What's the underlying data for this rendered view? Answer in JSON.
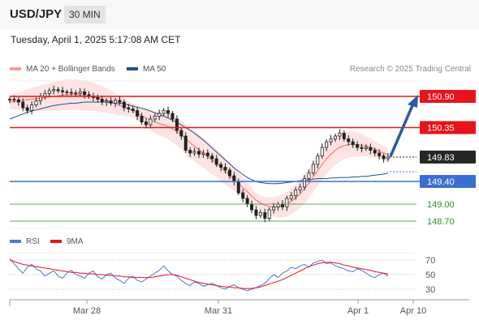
{
  "header": {
    "pair": "USD/JPY",
    "timeframe": "30 MIN"
  },
  "date": "Tuesday, April 1, 2025 5:17:08 AM CET",
  "legend": {
    "ma20": "MA 20 + Bollinger Bands",
    "ma50": "MA 50",
    "credit": "Research © 2025 Trading Central"
  },
  "colors": {
    "ma20": "#f26b6b",
    "ma50": "#1f4e8c",
    "band": "#fde3e3",
    "resistance": "#e8141b",
    "support": "#3b6fd4",
    "target": "#2e8b2e",
    "arrow": "#2a5aa0",
    "rsi": "#4a78d6",
    "rsi_ma": "#e8141b"
  },
  "chart_data": [
    {
      "type": "candlestick",
      "ylim": [
        148.5,
        151.1
      ],
      "x_ticks": [
        "Mar 28",
        "Mar 31",
        "Apr 1",
        "Apr 10"
      ],
      "levels": [
        {
          "label": "150.90",
          "value": 150.9,
          "kind": "resistance"
        },
        {
          "label": "150.35",
          "value": 150.35,
          "kind": "resistance"
        },
        {
          "label": "149.83",
          "value": 149.83,
          "kind": "last"
        },
        {
          "label": "149.40",
          "value": 149.4,
          "kind": "support"
        },
        {
          "label": "149.00",
          "value": 149.0,
          "kind": "target"
        },
        {
          "label": "148.70",
          "value": 148.7,
          "kind": "target"
        }
      ],
      "close": [
        150.85,
        150.84,
        150.8,
        150.7,
        150.65,
        150.75,
        150.82,
        150.9,
        150.95,
        151.0,
        151.02,
        151.0,
        150.98,
        150.97,
        150.96,
        150.95,
        150.98,
        150.93,
        150.9,
        150.88,
        150.85,
        150.8,
        150.82,
        150.78,
        150.83,
        150.8,
        150.7,
        150.68,
        150.65,
        150.55,
        150.45,
        150.4,
        150.5,
        150.55,
        150.6,
        150.65,
        150.6,
        150.5,
        150.3,
        150.2,
        149.95,
        149.9,
        149.93,
        149.88,
        149.9,
        149.85,
        149.8,
        149.7,
        149.65,
        149.6,
        149.5,
        149.4,
        149.2,
        149.1,
        149.0,
        148.9,
        148.8,
        148.85,
        148.75,
        148.9,
        148.95,
        149.0,
        148.95,
        149.1,
        149.15,
        149.25,
        149.3,
        149.45,
        149.55,
        149.7,
        149.85,
        150.0,
        150.1,
        150.15,
        150.2,
        150.25,
        150.15,
        150.1,
        150.05,
        150.0,
        149.98,
        150.0,
        149.95,
        149.9,
        149.85,
        149.8,
        149.83
      ],
      "ma20": [
        150.8,
        150.81,
        150.82,
        150.83,
        150.84,
        150.85,
        150.86,
        150.87,
        150.88,
        150.89,
        150.9,
        150.91,
        150.92,
        150.93,
        150.93,
        150.93,
        150.92,
        150.91,
        150.9,
        150.89,
        150.87,
        150.85,
        150.83,
        150.8,
        150.77,
        150.74,
        150.71,
        150.68,
        150.65,
        150.61,
        150.56,
        150.52,
        150.48,
        150.45,
        150.42,
        150.4,
        150.37,
        150.33,
        150.28,
        150.22,
        150.15,
        150.08,
        150.02,
        149.96,
        149.9,
        149.84,
        149.78,
        149.72,
        149.65,
        149.58,
        149.51,
        149.44,
        149.37,
        149.29,
        149.22,
        149.14,
        149.07,
        149.02,
        148.98,
        148.96,
        148.95,
        148.95,
        148.97,
        149.0,
        149.05,
        149.11,
        149.18,
        149.27,
        149.37,
        149.48,
        149.59,
        149.7,
        149.8,
        149.88,
        149.95,
        150.0,
        150.03,
        150.05,
        150.06,
        150.05,
        150.04,
        150.02,
        150.0,
        149.97,
        149.93,
        149.9,
        149.87
      ],
      "ma50": [
        150.5,
        150.53,
        150.56,
        150.59,
        150.62,
        150.64,
        150.66,
        150.68,
        150.7,
        150.72,
        150.74,
        150.75,
        150.76,
        150.77,
        150.78,
        150.78,
        150.79,
        150.8,
        150.8,
        150.8,
        150.8,
        150.8,
        150.8,
        150.79,
        150.79,
        150.78,
        150.77,
        150.75,
        150.73,
        150.71,
        150.69,
        150.67,
        150.64,
        150.61,
        150.58,
        150.55,
        150.52,
        150.48,
        150.44,
        150.4,
        150.35,
        150.3,
        150.25,
        150.19,
        150.13,
        150.06,
        149.99,
        149.92,
        149.85,
        149.78,
        149.71,
        149.64,
        149.58,
        149.52,
        149.47,
        149.43,
        149.4,
        149.38,
        149.37,
        149.36,
        149.36,
        149.36,
        149.37,
        149.38,
        149.39,
        149.4,
        149.41,
        149.42,
        149.43,
        149.44,
        149.45,
        149.45,
        149.45,
        149.46,
        149.46,
        149.47,
        149.47,
        149.47,
        149.48,
        149.48,
        149.49,
        149.49,
        149.5,
        149.51,
        149.52,
        149.53,
        149.55
      ]
    },
    {
      "type": "line",
      "name": "RSI",
      "y_ticks": [
        70,
        50,
        30
      ],
      "ylim": [
        25,
        75
      ],
      "rsi": [
        72,
        65,
        58,
        52,
        60,
        64,
        58,
        55,
        48,
        52,
        55,
        48,
        45,
        52,
        56,
        50,
        48,
        45,
        52,
        55,
        47,
        44,
        50,
        52,
        45,
        42,
        38,
        45,
        48,
        42,
        40,
        44,
        48,
        52,
        56,
        62,
        55,
        50,
        48,
        42,
        38,
        35,
        40,
        38,
        34,
        36,
        38,
        35,
        32,
        30,
        34,
        36,
        32,
        30,
        28,
        30,
        32,
        35,
        38,
        45,
        50,
        46,
        52,
        55,
        60,
        58,
        62,
        64,
        60,
        66,
        68,
        70,
        65,
        66,
        62,
        60,
        58,
        55,
        54,
        58,
        56,
        52,
        48,
        46,
        50,
        52,
        48
      ],
      "rsi_ma": [
        70,
        68,
        66,
        64,
        63,
        62,
        61,
        60,
        59,
        58,
        57,
        56,
        55,
        54,
        53,
        53,
        52,
        52,
        51,
        51,
        50,
        50,
        49,
        49,
        48,
        48,
        47,
        47,
        46,
        46,
        46,
        46,
        46,
        47,
        48,
        49,
        50,
        50,
        49,
        47,
        45,
        43,
        41,
        39,
        38,
        37,
        36,
        35,
        34,
        33,
        33,
        32,
        32,
        31,
        31,
        31,
        32,
        33,
        35,
        37,
        39,
        41,
        43,
        46,
        49,
        52,
        55,
        58,
        61,
        63,
        65,
        66,
        67,
        67,
        66,
        65,
        63,
        62,
        60,
        59,
        58,
        57,
        56,
        54,
        53,
        52,
        51
      ]
    }
  ]
}
